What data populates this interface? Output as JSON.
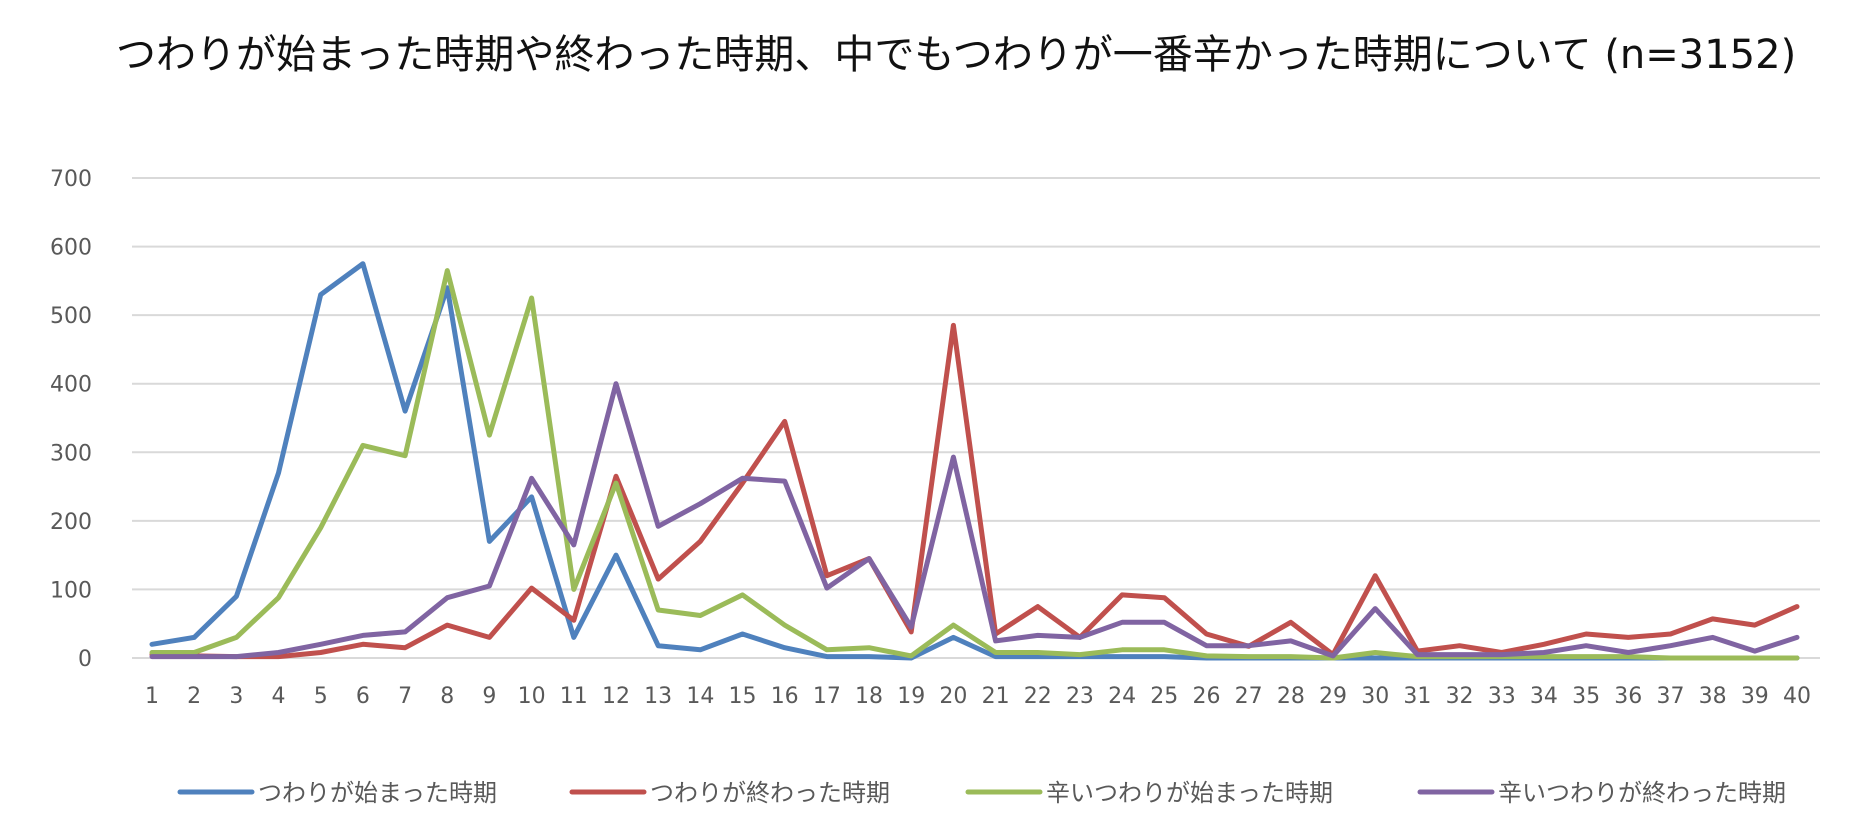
{
  "chart_data": {
    "type": "line",
    "title": "つわりが始まった時期や終わった時期、中でもつわりが一番辛かった時期について (n=3152)",
    "xlabel": "",
    "ylabel": "",
    "ylim": [
      0,
      700
    ],
    "yticks": [
      0,
      100,
      200,
      300,
      400,
      500,
      600,
      700
    ],
    "grid": true,
    "legend_position": "bottom",
    "categories": [
      "1",
      "2",
      "3",
      "4",
      "5",
      "6",
      "7",
      "8",
      "9",
      "10",
      "11",
      "12",
      "13",
      "14",
      "15",
      "16",
      "17",
      "18",
      "19",
      "20",
      "21",
      "22",
      "23",
      "24",
      "25",
      "26",
      "27",
      "28",
      "29",
      "30",
      "31",
      "32",
      "33",
      "34",
      "35",
      "36",
      "37",
      "38",
      "39",
      "40"
    ],
    "series": [
      {
        "name": "つわりが始まった時期",
        "color": "#4f81bd",
        "values": [
          20,
          30,
          90,
          270,
          530,
          575,
          360,
          540,
          170,
          235,
          30,
          150,
          18,
          12,
          35,
          15,
          2,
          2,
          0,
          30,
          2,
          2,
          2,
          2,
          2,
          0,
          0,
          0,
          0,
          0,
          0,
          0,
          0,
          0,
          0,
          0,
          0,
          0,
          0,
          0
        ]
      },
      {
        "name": "つわりが終わった時期",
        "color": "#c0504d",
        "values": [
          5,
          3,
          2,
          2,
          8,
          20,
          15,
          48,
          30,
          102,
          55,
          265,
          115,
          170,
          255,
          345,
          120,
          145,
          38,
          485,
          35,
          75,
          30,
          92,
          88,
          35,
          17,
          52,
          5,
          120,
          10,
          18,
          8,
          20,
          35,
          30,
          35,
          57,
          48,
          75
        ]
      },
      {
        "name": "辛いつわりが始まった時期",
        "color": "#9bbb59",
        "values": [
          8,
          8,
          30,
          88,
          190,
          310,
          295,
          565,
          325,
          525,
          100,
          255,
          70,
          62,
          92,
          48,
          12,
          15,
          3,
          48,
          8,
          8,
          5,
          12,
          12,
          3,
          2,
          2,
          0,
          8,
          2,
          2,
          2,
          2,
          2,
          2,
          0,
          0,
          0,
          0
        ]
      },
      {
        "name": "辛いつわりが終わった時期",
        "color": "#8064a2",
        "values": [
          2,
          2,
          2,
          8,
          20,
          33,
          38,
          88,
          105,
          262,
          165,
          400,
          192,
          225,
          262,
          258,
          102,
          145,
          45,
          293,
          25,
          33,
          30,
          52,
          52,
          18,
          18,
          25,
          3,
          72,
          5,
          5,
          5,
          8,
          18,
          8,
          18,
          30,
          10,
          30
        ]
      }
    ]
  }
}
